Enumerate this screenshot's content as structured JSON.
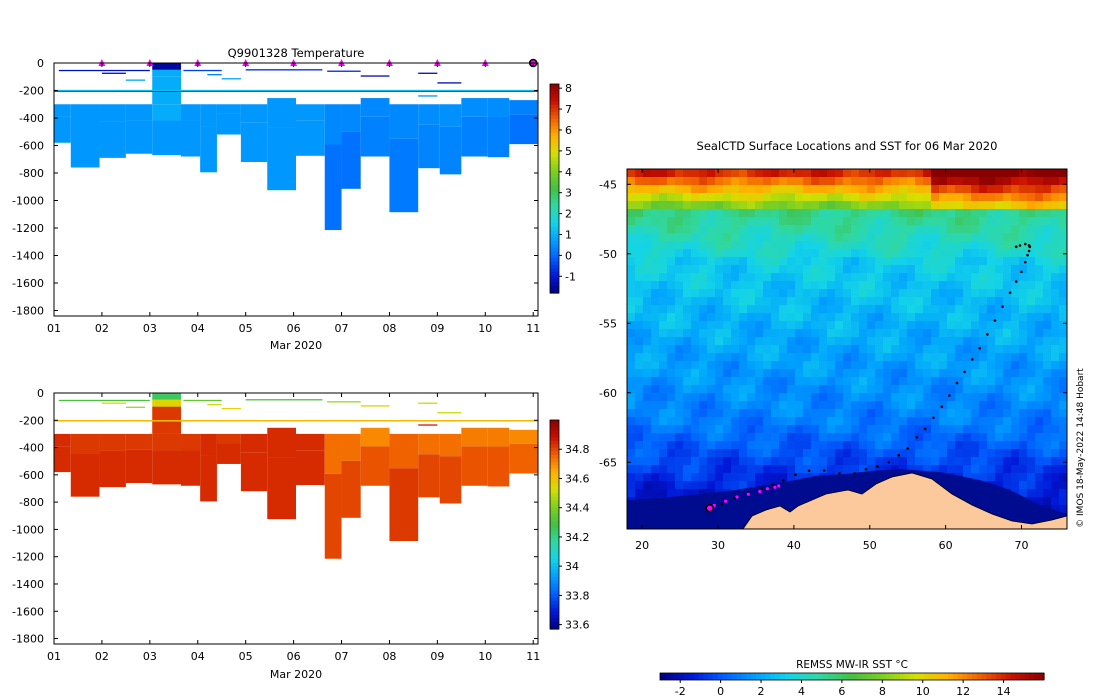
{
  "chart_data": [
    {
      "type": "heatmap",
      "title": "Q9901328  Temperature",
      "xlabel": "Mar 2020",
      "ylabel": "",
      "x_ticks": [
        "01",
        "02",
        "03",
        "04",
        "05",
        "06",
        "07",
        "08",
        "09",
        "10",
        "11"
      ],
      "y_ticks": [
        0,
        -200,
        -400,
        -600,
        -800,
        -1000,
        -1200,
        -1400,
        -1600,
        -1800
      ],
      "xlim": [
        1,
        11.1
      ],
      "ylim": [
        -1840,
        0
      ],
      "surfacing_markers_day": [
        2,
        3,
        4,
        5,
        6,
        7,
        8,
        9,
        10
      ],
      "last_surfacing_day": 11,
      "colorbar": {
        "ticks": [
          "8",
          "7",
          "6",
          "5",
          "4",
          "3",
          "2",
          "1",
          "0",
          "-1"
        ],
        "range": [
          -1.8,
          8.2
        ],
        "colors": [
          "#00007f",
          "#0018d8",
          "#0060ff",
          "#00a0ff",
          "#14d4e8",
          "#30d8a0",
          "#44c044",
          "#7fd020",
          "#d4e000",
          "#ffb000",
          "#f06000",
          "#c81000",
          "#8a0000"
        ]
      },
      "profiles": [
        {
          "t0": 1.0,
          "t1": 1.35,
          "deep": [
            -300,
            -580
          ],
          "deep_value": 0.6,
          "mid_value": 0.6
        },
        {
          "t0": 1.35,
          "t1": 1.95,
          "deep": [
            -300,
            -760
          ],
          "deep_value": 0.6,
          "mid_value": 0.6
        },
        {
          "t0": 1.95,
          "t1": 2.5,
          "deep": [
            -300,
            -690
          ],
          "deep_value": 0.6,
          "mid_value": 0.6
        },
        {
          "t0": 2.5,
          "t1": 3.05,
          "deep": [
            -300,
            -660
          ],
          "deep_value": 0.6,
          "mid_value": 0.6
        },
        {
          "t0": 3.05,
          "t1": 3.65,
          "deep": [
            -300,
            -670
          ],
          "deep_value": 0.6,
          "mid_value": 0.9,
          "top": [
            0,
            -100
          ],
          "top_value": -1.5
        },
        {
          "t0": 3.65,
          "t1": 4.05,
          "deep": [
            -300,
            -680
          ],
          "deep_value": 0.6,
          "mid_value": 0.6
        },
        {
          "t0": 4.05,
          "t1": 4.4,
          "deep": [
            -300,
            -795
          ],
          "deep_value": 0.6,
          "mid_value": 0.6
        },
        {
          "t0": 4.4,
          "t1": 4.9,
          "deep": [
            -300,
            -520
          ],
          "deep_value": 0.6,
          "mid_value": 0.6
        },
        {
          "t0": 4.9,
          "t1": 5.45,
          "deep": [
            -300,
            -720
          ],
          "deep_value": 0.6,
          "mid_value": 0.6
        },
        {
          "t0": 5.45,
          "t1": 6.05,
          "deep": [
            -255,
            -925
          ],
          "deep_value": 0.6,
          "mid_value": 0.6
        },
        {
          "t0": 6.05,
          "t1": 6.65,
          "deep": [
            -300,
            -675
          ],
          "deep_value": 0.6,
          "mid_value": 0.6
        },
        {
          "t0": 6.65,
          "t1": 7.0,
          "deep": [
            -300,
            -1215
          ],
          "deep_value": 0.1,
          "mid_value": 0.4
        },
        {
          "t0": 7.0,
          "t1": 7.4,
          "deep": [
            -300,
            -915
          ],
          "deep_value": 0.1,
          "mid_value": 0.4
        },
        {
          "t0": 7.4,
          "t1": 8.0,
          "deep": [
            -255,
            -680
          ],
          "deep_value": 0.3,
          "mid_value": 0.4
        },
        {
          "t0": 8.0,
          "t1": 8.6,
          "deep": [
            -300,
            -1085
          ],
          "deep_value": 0.2,
          "mid_value": 0.4
        },
        {
          "t0": 8.6,
          "t1": 9.05,
          "deep": [
            -300,
            -765
          ],
          "deep_value": 0.35,
          "mid_value": 0.45
        },
        {
          "t0": 9.05,
          "t1": 9.5,
          "deep": [
            -300,
            -810
          ],
          "deep_value": 0.35,
          "mid_value": 0.5
        },
        {
          "t0": 9.5,
          "t1": 10.05,
          "deep": [
            -255,
            -680
          ],
          "deep_value": 0.3,
          "mid_value": 0.45
        },
        {
          "t0": 10.05,
          "t1": 10.5,
          "deep": [
            -255,
            -685
          ],
          "deep_value": 0.3,
          "mid_value": 0.45
        },
        {
          "t0": 10.5,
          "t1": 11.1,
          "deep": [
            -270,
            -590
          ],
          "deep_value": 0.1,
          "mid_value": 0.3
        }
      ],
      "thin_layers": [
        {
          "t0": 1.1,
          "t1": 3.0,
          "depth": -50,
          "value": -1.2
        },
        {
          "t0": 2.0,
          "t1": 2.5,
          "depth": -70,
          "value": -1.4
        },
        {
          "t0": 2.5,
          "t1": 2.9,
          "depth": -120,
          "value": 0.8
        },
        {
          "t0": 3.7,
          "t1": 4.5,
          "depth": -50,
          "value": -0.5
        },
        {
          "t0": 4.2,
          "t1": 4.5,
          "depth": -80,
          "value": 0.3
        },
        {
          "t0": 4.5,
          "t1": 4.9,
          "depth": -110,
          "value": 0.8
        },
        {
          "t0": 5.0,
          "t1": 6.6,
          "depth": -45,
          "value": -0.8
        },
        {
          "t0": 6.7,
          "t1": 7.4,
          "depth": -55,
          "value": -0.8
        },
        {
          "t0": 7.4,
          "t1": 8.0,
          "depth": -90,
          "value": -1.3
        },
        {
          "t0": 8.6,
          "t1": 9.0,
          "depth": -70,
          "value": -1.4
        },
        {
          "t0": 8.6,
          "t1": 9.0,
          "depth": -235,
          "value": 0.5
        },
        {
          "t0": 9.0,
          "t1": 9.5,
          "depth": -140,
          "value": -1.3
        },
        {
          "t0": 1.0,
          "t1": 11.1,
          "depth": -200,
          "value": -1.6
        },
        {
          "t0": 1.0,
          "t1": 11.1,
          "depth": -195,
          "value": 1.2
        }
      ]
    },
    {
      "type": "heatmap",
      "title": "",
      "xlabel": "Mar 2020",
      "ylabel": "",
      "x_ticks": [
        "01",
        "02",
        "03",
        "04",
        "05",
        "06",
        "07",
        "08",
        "09",
        "10",
        "11"
      ],
      "y_ticks": [
        0,
        -200,
        -400,
        -600,
        -800,
        -1000,
        -1200,
        -1400,
        -1600,
        -1800
      ],
      "xlim": [
        1,
        11.1
      ],
      "ylim": [
        -1840,
        0
      ],
      "colorbar": {
        "ticks": [
          "34.8",
          "34.6",
          "34.4",
          "34.2",
          "34",
          "33.8",
          "33.6"
        ],
        "range": [
          33.57,
          35.0
        ],
        "colors": [
          "#00007f",
          "#0018d8",
          "#0060ff",
          "#00a0ff",
          "#14d4e8",
          "#30d8a0",
          "#44c044",
          "#7fd020",
          "#d4e000",
          "#ffb000",
          "#f06000",
          "#c81000",
          "#8a0000"
        ]
      },
      "profiles": [
        {
          "t0": 1.0,
          "t1": 1.35,
          "deep": [
            -300,
            -580
          ],
          "deep_value": 34.84,
          "mid_value": 34.84
        },
        {
          "t0": 1.35,
          "t1": 1.95,
          "deep": [
            -300,
            -760
          ],
          "deep_value": 34.84,
          "mid_value": 34.82
        },
        {
          "t0": 1.95,
          "t1": 2.5,
          "deep": [
            -300,
            -690
          ],
          "deep_value": 34.84,
          "mid_value": 34.82
        },
        {
          "t0": 2.5,
          "t1": 3.05,
          "deep": [
            -300,
            -660
          ],
          "deep_value": 34.84,
          "mid_value": 34.82
        },
        {
          "t0": 3.05,
          "t1": 3.65,
          "deep": [
            -300,
            -670
          ],
          "deep_value": 34.84,
          "mid_value": 34.82,
          "top": [
            0,
            -100
          ],
          "top_value": 34.25,
          "top2_value": 34.55
        },
        {
          "t0": 3.65,
          "t1": 4.05,
          "deep": [
            -300,
            -680
          ],
          "deep_value": 34.84,
          "mid_value": 34.82
        },
        {
          "t0": 4.05,
          "t1": 4.4,
          "deep": [
            -300,
            -795
          ],
          "deep_value": 34.84,
          "mid_value": 34.84
        },
        {
          "t0": 4.4,
          "t1": 4.9,
          "deep": [
            -300,
            -520
          ],
          "deep_value": 34.84,
          "mid_value": 34.82
        },
        {
          "t0": 4.9,
          "t1": 5.45,
          "deep": [
            -300,
            -720
          ],
          "deep_value": 34.84,
          "mid_value": 34.84
        },
        {
          "t0": 5.45,
          "t1": 6.05,
          "deep": [
            -255,
            -925
          ],
          "deep_value": 34.84,
          "mid_value": 34.84
        },
        {
          "t0": 6.05,
          "t1": 6.65,
          "deep": [
            -300,
            -675
          ],
          "deep_value": 34.84,
          "mid_value": 34.84
        },
        {
          "t0": 6.65,
          "t1": 7.0,
          "deep": [
            -300,
            -1215
          ],
          "deep_value": 34.8,
          "mid_value": 34.74
        },
        {
          "t0": 7.0,
          "t1": 7.4,
          "deep": [
            -300,
            -915
          ],
          "deep_value": 34.8,
          "mid_value": 34.74
        },
        {
          "t0": 7.4,
          "t1": 8.0,
          "deep": [
            -255,
            -680
          ],
          "deep_value": 34.78,
          "mid_value": 34.7
        },
        {
          "t0": 8.0,
          "t1": 8.6,
          "deep": [
            -300,
            -1085
          ],
          "deep_value": 34.82,
          "mid_value": 34.76
        },
        {
          "t0": 8.6,
          "t1": 9.05,
          "deep": [
            -300,
            -765
          ],
          "deep_value": 34.8,
          "mid_value": 34.74
        },
        {
          "t0": 9.05,
          "t1": 9.5,
          "deep": [
            -300,
            -810
          ],
          "deep_value": 34.8,
          "mid_value": 34.74
        },
        {
          "t0": 9.5,
          "t1": 10.05,
          "deep": [
            -255,
            -680
          ],
          "deep_value": 34.78,
          "mid_value": 34.72
        },
        {
          "t0": 10.05,
          "t1": 10.5,
          "deep": [
            -255,
            -685
          ],
          "deep_value": 34.78,
          "mid_value": 34.72
        },
        {
          "t0": 10.5,
          "t1": 11.1,
          "deep": [
            -270,
            -590
          ],
          "deep_value": 34.76,
          "mid_value": 34.7
        }
      ],
      "thin_layers": [
        {
          "t0": 1.1,
          "t1": 3.0,
          "depth": -50,
          "value": 34.3
        },
        {
          "t0": 2.0,
          "t1": 2.5,
          "depth": -70,
          "value": 34.55
        },
        {
          "t0": 2.5,
          "t1": 2.9,
          "depth": -100,
          "value": 34.45
        },
        {
          "t0": 3.7,
          "t1": 4.5,
          "depth": -50,
          "value": 34.35
        },
        {
          "t0": 4.2,
          "t1": 4.5,
          "depth": -80,
          "value": 34.5
        },
        {
          "t0": 4.5,
          "t1": 4.9,
          "depth": -110,
          "value": 34.55
        },
        {
          "t0": 5.0,
          "t1": 6.6,
          "depth": -45,
          "value": 34.3
        },
        {
          "t0": 6.7,
          "t1": 7.4,
          "depth": -60,
          "value": 34.45
        },
        {
          "t0": 7.4,
          "t1": 8.0,
          "depth": -90,
          "value": 34.55
        },
        {
          "t0": 8.6,
          "t1": 9.0,
          "depth": -70,
          "value": 34.5
        },
        {
          "t0": 8.6,
          "t1": 9.0,
          "depth": -230,
          "value": 34.86
        },
        {
          "t0": 9.0,
          "t1": 9.5,
          "depth": -140,
          "value": 34.5
        },
        {
          "t0": 1.0,
          "t1": 11.1,
          "depth": -200,
          "value": 34.6
        },
        {
          "t0": 1.0,
          "t1": 11.1,
          "depth": -198,
          "value": 34.62
        }
      ]
    },
    {
      "type": "heatmap",
      "title": "SealCTD Surface Locations and SST for 06 Mar 2020",
      "xlabel": "",
      "ylabel": "",
      "x_ticks": [
        20,
        30,
        40,
        50,
        60,
        70
      ],
      "y_ticks": [
        -45,
        -50,
        -55,
        -60,
        -65
      ],
      "xlim": [
        18,
        76
      ],
      "ylim": [
        -69.8,
        -43.9
      ],
      "credit": "© IMOS 18-May-2022 14:48 Hobart",
      "colorbar": {
        "label": "REMSS MW-IR SST °C",
        "ticks": [
          "-2",
          "0",
          "2",
          "4",
          "6",
          "8",
          "10",
          "12",
          "14"
        ],
        "range": [
          -3,
          16
        ],
        "colors": [
          "#00007f",
          "#0018d8",
          "#0060ff",
          "#00a0ff",
          "#14d4e8",
          "#30d8a0",
          "#44c044",
          "#7fd020",
          "#d4e000",
          "#ffb000",
          "#f06000",
          "#c81000",
          "#8a0000"
        ]
      },
      "track_lon": [
        28.9,
        30.5,
        32.2,
        34.0,
        35.8,
        37.2,
        38.6,
        40.2,
        42.0,
        44.0,
        46.0,
        48.0,
        49.5,
        51.0,
        52.5,
        53.8,
        55.0,
        56.2,
        57.3,
        58.4,
        59.5,
        60.5,
        61.5,
        62.5,
        63.5,
        64.5,
        65.5,
        66.5,
        67.5,
        68.5,
        69.3,
        70.0,
        70.5,
        70.8,
        71.0,
        71.1,
        71.0,
        70.5,
        69.8,
        69.3
      ],
      "track_lat": [
        -68.3,
        -68.0,
        -67.6,
        -67.2,
        -66.9,
        -66.6,
        -66.3,
        -65.9,
        -65.6,
        -65.6,
        -65.8,
        -65.8,
        -65.5,
        -65.3,
        -65.0,
        -64.5,
        -64.0,
        -63.2,
        -62.6,
        -61.8,
        -61.0,
        -60.2,
        -59.3,
        -58.5,
        -57.6,
        -56.8,
        -55.8,
        -54.8,
        -53.8,
        -52.8,
        -52.0,
        -51.3,
        -50.6,
        -50.1,
        -49.8,
        -49.5,
        -49.4,
        -49.3,
        -49.4,
        -49.5
      ],
      "recent_lon": [
        29.5,
        31.0,
        32.5,
        34.0,
        35.5,
        36.5,
        37.5,
        38.0
      ],
      "recent_lat": [
        -68.1,
        -67.8,
        -67.5,
        -67.3,
        -67.1,
        -66.9,
        -66.8,
        -66.7
      ],
      "current_position": [
        28.9,
        -68.3
      ]
    }
  ]
}
